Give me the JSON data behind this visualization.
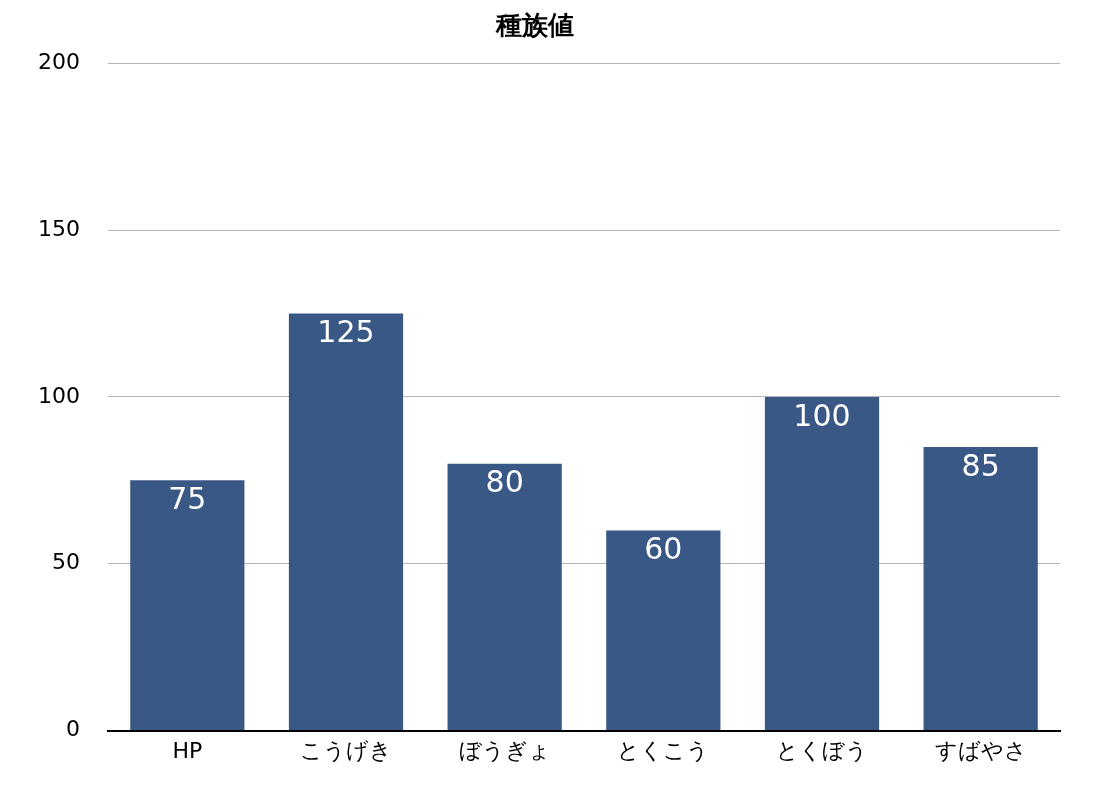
{
  "chart_data": {
    "type": "bar",
    "title": "種族値",
    "categories": [
      "HP",
      "こうげき",
      "ぼうぎょ",
      "とくこう",
      "とくぼう",
      "すばやさ"
    ],
    "values": [
      75,
      125,
      80,
      60,
      100,
      85
    ],
    "color": "#3a5886",
    "ylim": [
      0,
      200
    ],
    "yticks": [
      0,
      50,
      100,
      150,
      200
    ],
    "grid": "y",
    "legend": false,
    "data_labels": true
  }
}
